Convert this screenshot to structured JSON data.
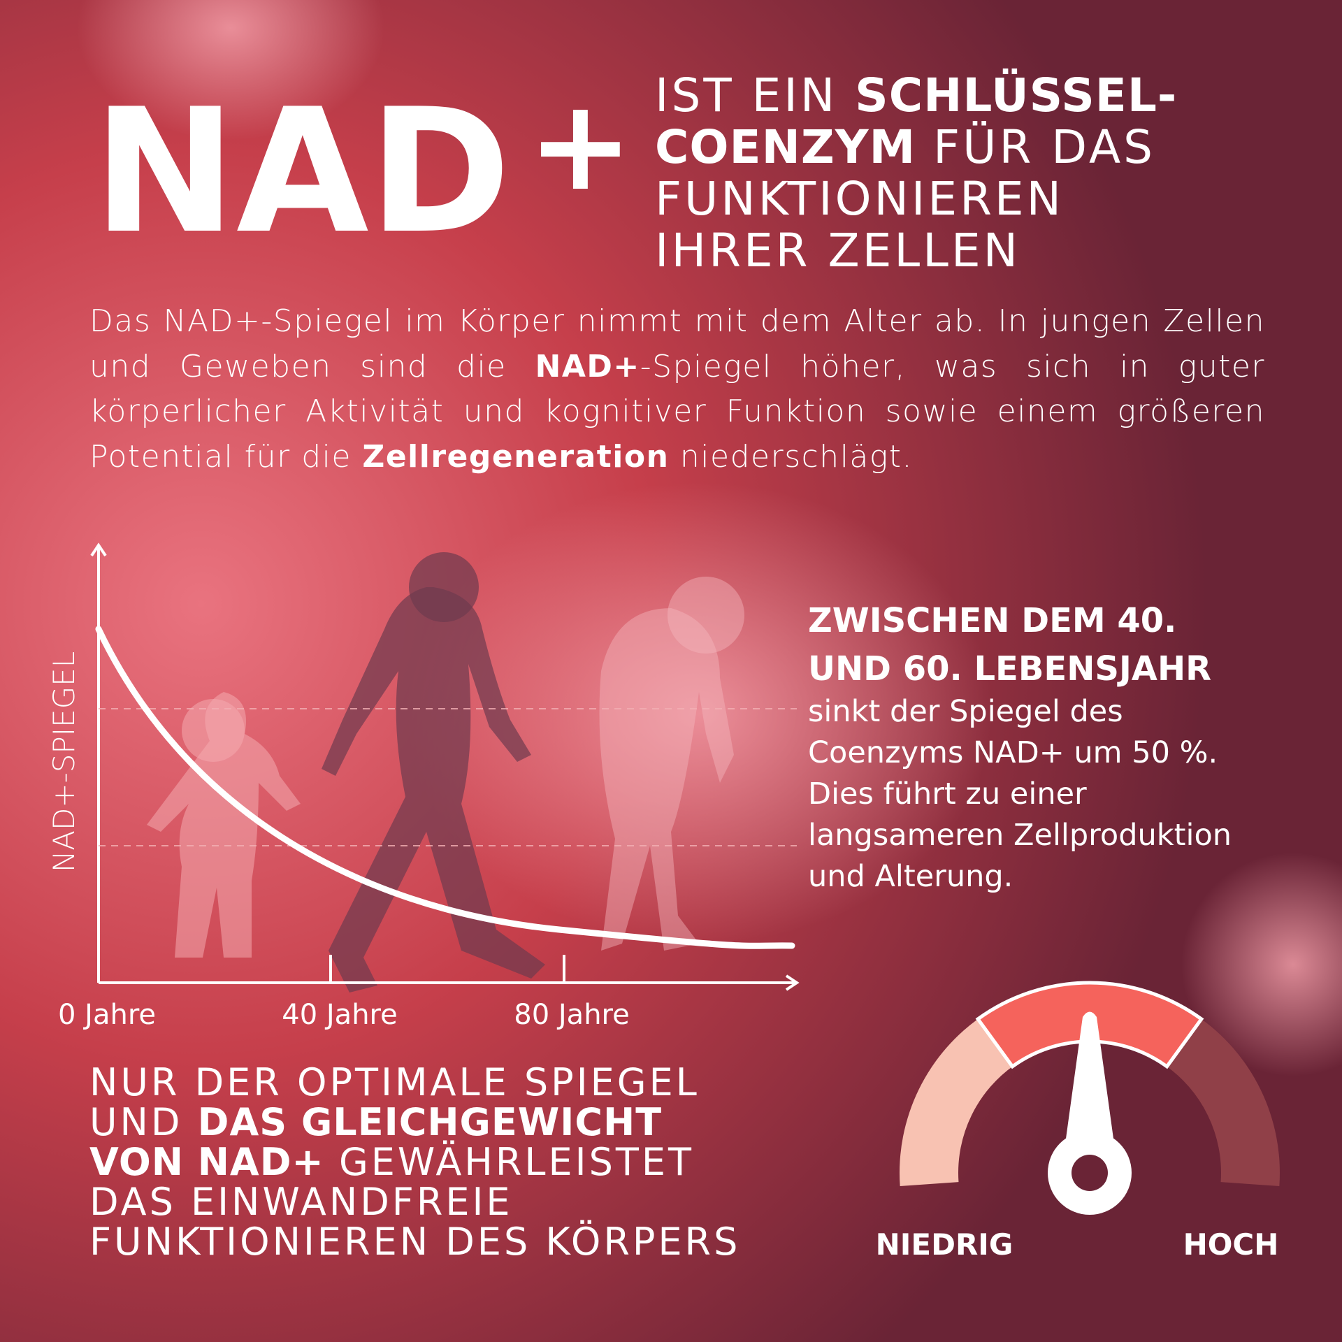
{
  "header": {
    "title": "NAD",
    "title_sup": "+",
    "tagline": [
      [
        {
          "text": "IST EIN ",
          "bold": false
        },
        {
          "text": "SCHLÜSSEL-",
          "bold": true
        }
      ],
      [
        {
          "text": "COENZYM",
          "bold": true
        },
        {
          "text": " FÜR DAS",
          "bold": false
        }
      ],
      [
        {
          "text": "FUNKTIONIEREN",
          "bold": false
        }
      ],
      [
        {
          "text": "IHRER ZELLEN",
          "bold": false
        }
      ]
    ]
  },
  "intro": [
    {
      "text": "Das NAD+-Spiegel im Körper nimmt mit dem Alter ab. In jungen Zellen und Geweben sind die ",
      "bold": false
    },
    {
      "text": "NAD+",
      "bold": true
    },
    {
      "text": "-Spiegel höher, was sich in guter körperlicher Aktivität und kognitiver Funktion sowie einem größeren Potential für die ",
      "bold": false
    },
    {
      "text": "Zellregeneration",
      "bold": true
    },
    {
      "text": " niederschlägt.",
      "bold": false
    }
  ],
  "diagram": {
    "y_label": "NAD+-SPIEGEL",
    "x_labels": [
      "0 Jahre",
      "40 Jahre",
      "80 Jahre"
    ]
  },
  "callout": {
    "heading": [
      "ZWISCHEN DEM 40.",
      "UND 60. LEBENSJAHR"
    ],
    "body": [
      "sinkt der Spiegel des",
      "Coenzyms NAD+ um 50 %.",
      "Dies führt zu einer",
      "langsameren Zellproduktion",
      "und Alterung."
    ]
  },
  "footer": [
    [
      {
        "text": "NUR DER OPTIMALE SPIEGEL",
        "bold": false
      }
    ],
    [
      {
        "text": "UND ",
        "bold": false
      },
      {
        "text": "DAS GLEICHGEWICHT",
        "bold": true
      }
    ],
    [
      {
        "text": "VON NAD+",
        "bold": true
      },
      {
        "text": " GEWÄHRLEISTET",
        "bold": false
      }
    ],
    [
      {
        "text": "DAS EINWANDFREIE",
        "bold": false
      }
    ],
    [
      {
        "text": "FUNKTIONIEREN DES KÖRPERS",
        "bold": false
      }
    ]
  ],
  "gauge": {
    "low": "NIEDRIG",
    "high": "HOCH"
  }
}
